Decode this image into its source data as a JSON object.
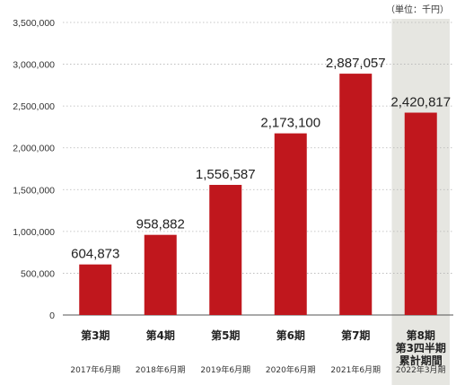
{
  "chart_data": {
    "type": "bar",
    "unit_note": "（単位：千円）",
    "ylim": [
      0,
      3500000
    ],
    "yticks": [
      "3,500,000",
      "3,000,000",
      "2,500,000",
      "2,000,000",
      "1,500,000",
      "1,000,000",
      "500,000",
      "0"
    ],
    "ytick_values": [
      3500000,
      3000000,
      2500000,
      2000000,
      1500000,
      1000000,
      500000,
      0
    ],
    "grid": "horizontal dotted",
    "categories": [
      {
        "label": [
          "第3期"
        ],
        "date": "2017年6月期",
        "value": 604873,
        "value_label": "604,873",
        "highlight": false
      },
      {
        "label": [
          "第4期"
        ],
        "date": "2018年6月期",
        "value": 958882,
        "value_label": "958,882",
        "highlight": false
      },
      {
        "label": [
          "第5期"
        ],
        "date": "2019年6月期",
        "value": 1556587,
        "value_label": "1,556,587",
        "highlight": false
      },
      {
        "label": [
          "第6期"
        ],
        "date": "2020年6月期",
        "value": 2173100,
        "value_label": "2,173,100",
        "highlight": false
      },
      {
        "label": [
          "第7期"
        ],
        "date": "2021年6月期",
        "value": 2887057,
        "value_label": "2,887,057",
        "highlight": false
      },
      {
        "label": [
          "第8期",
          "第3四半期",
          "累計期間"
        ],
        "date": "2022年3月期",
        "value": 2420817,
        "value_label": "2,420,817",
        "highlight": true
      }
    ],
    "colors": {
      "bar": "#c0171d",
      "highlight_bg": "#e6e6e1",
      "grid": "#b5b5b5",
      "axis": "#555555"
    }
  }
}
